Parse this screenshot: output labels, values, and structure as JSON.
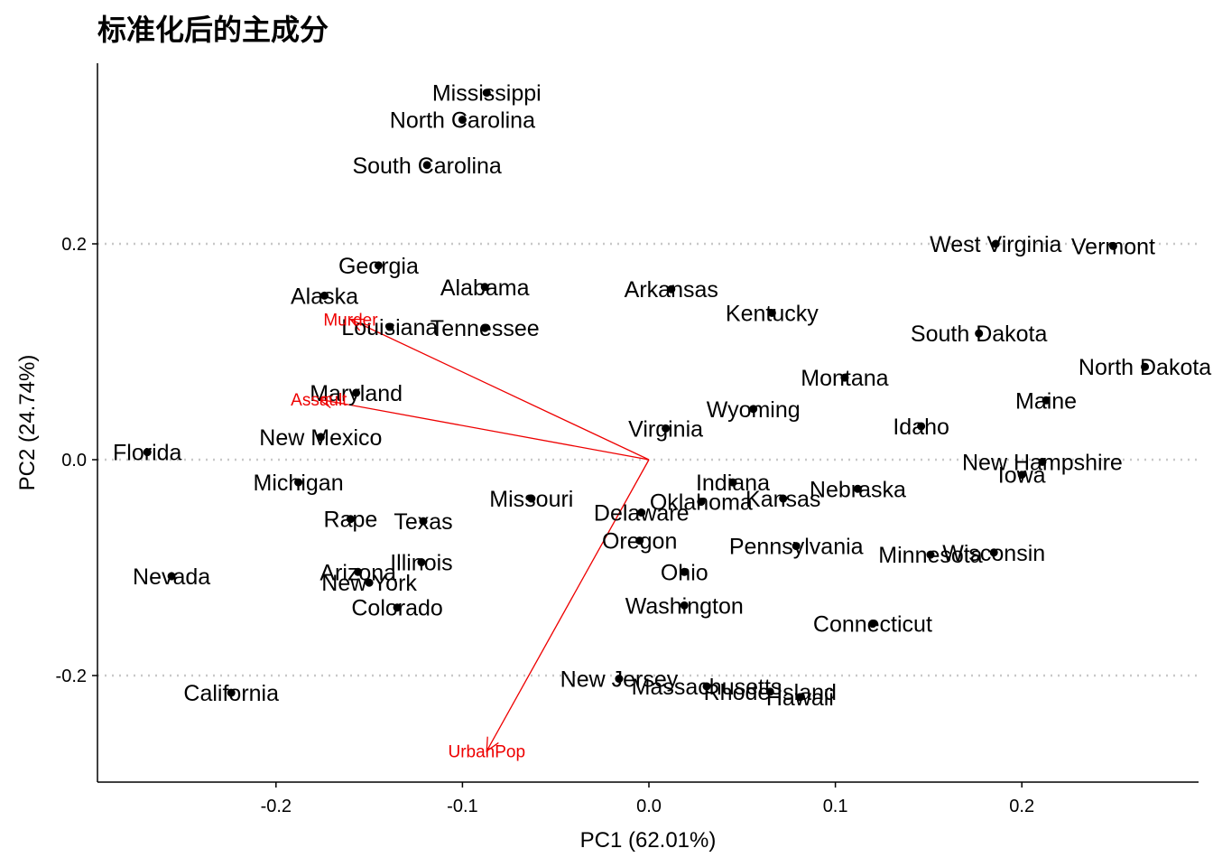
{
  "chart_data": {
    "type": "scatter",
    "title": "标准化后的主成分",
    "xlabel": "PC1 (62.01%)",
    "ylabel": "PC2 (24.74%)",
    "xlim": [
      -0.295,
      0.29
    ],
    "ylim": [
      -0.3,
      0.37
    ],
    "x_ticks": [
      -0.2,
      -0.1,
      0.0,
      0.1,
      0.2
    ],
    "x_tick_labels": [
      "-0.2",
      "-0.1",
      "0.0",
      "0.1",
      "0.2"
    ],
    "y_ticks": [
      -0.2,
      0.0,
      0.2
    ],
    "y_tick_labels": [
      "-0.2",
      "0.0",
      "0.2"
    ],
    "horizontal_gridlines": "dotted, at y ticks",
    "point_color": "#000000",
    "loading_color": "#ee0000",
    "points": [
      {
        "name": "Mississippi",
        "x": -0.087,
        "y": 0.34
      },
      {
        "name": "North Carolina",
        "x": -0.1,
        "y": 0.315
      },
      {
        "name": "South Carolina",
        "x": -0.119,
        "y": 0.273
      },
      {
        "name": "Georgia",
        "x": -0.145,
        "y": 0.18
      },
      {
        "name": "Alaska",
        "x": -0.174,
        "y": 0.152
      },
      {
        "name": "Alabama",
        "x": -0.088,
        "y": 0.16
      },
      {
        "name": "Louisiana",
        "x": -0.139,
        "y": 0.123
      },
      {
        "name": "Tennessee",
        "x": -0.088,
        "y": 0.122
      },
      {
        "name": "Arkansas",
        "x": 0.012,
        "y": 0.158
      },
      {
        "name": "Kentucky",
        "x": 0.066,
        "y": 0.136
      },
      {
        "name": "West Virginia",
        "x": 0.186,
        "y": 0.2
      },
      {
        "name": "Vermont",
        "x": 0.249,
        "y": 0.198
      },
      {
        "name": "South Dakota",
        "x": 0.177,
        "y": 0.117
      },
      {
        "name": "North Dakota",
        "x": 0.266,
        "y": 0.086
      },
      {
        "name": "Montana",
        "x": 0.105,
        "y": 0.076
      },
      {
        "name": "Maine",
        "x": 0.213,
        "y": 0.055
      },
      {
        "name": "Maryland",
        "x": -0.157,
        "y": 0.062
      },
      {
        "name": "Wyoming",
        "x": 0.056,
        "y": 0.047
      },
      {
        "name": "Idaho",
        "x": 0.146,
        "y": 0.031
      },
      {
        "name": "Virginia",
        "x": 0.009,
        "y": 0.029
      },
      {
        "name": "New Mexico",
        "x": -0.176,
        "y": 0.021
      },
      {
        "name": "Florida",
        "x": -0.269,
        "y": 0.007
      },
      {
        "name": "New Hampshire",
        "x": 0.211,
        "y": -0.002
      },
      {
        "name": "Iowa",
        "x": 0.2,
        "y": -0.014
      },
      {
        "name": "Michigan",
        "x": -0.188,
        "y": -0.021
      },
      {
        "name": "Indiana",
        "x": 0.045,
        "y": -0.021
      },
      {
        "name": "Nebraska",
        "x": 0.112,
        "y": -0.027
      },
      {
        "name": "Missouri",
        "x": -0.063,
        "y": -0.036
      },
      {
        "name": "Kansas",
        "x": 0.072,
        "y": -0.036
      },
      {
        "name": "Oklahoma",
        "x": 0.028,
        "y": -0.039
      },
      {
        "name": "Delaware",
        "x": -0.004,
        "y": -0.049
      },
      {
        "name": "Rape",
        "x": -0.16,
        "y": -0.055
      },
      {
        "name": "Texas",
        "x": -0.121,
        "y": -0.057
      },
      {
        "name": "Oregon",
        "x": -0.005,
        "y": -0.075
      },
      {
        "name": "Pennsylvania",
        "x": 0.079,
        "y": -0.08
      },
      {
        "name": "Minnesota",
        "x": 0.151,
        "y": -0.088
      },
      {
        "name": "Wisconsin",
        "x": 0.185,
        "y": -0.086
      },
      {
        "name": "Illinois",
        "x": -0.122,
        "y": -0.095
      },
      {
        "name": "Arizona",
        "x": -0.156,
        "y": -0.104
      },
      {
        "name": "Ohio",
        "x": 0.019,
        "y": -0.104
      },
      {
        "name": "New York",
        "x": -0.15,
        "y": -0.114
      },
      {
        "name": "Nevada",
        "x": -0.256,
        "y": -0.108
      },
      {
        "name": "Washington",
        "x": 0.019,
        "y": -0.135
      },
      {
        "name": "Colorado",
        "x": -0.135,
        "y": -0.137
      },
      {
        "name": "Connecticut",
        "x": 0.12,
        "y": -0.152
      },
      {
        "name": "New Jersey",
        "x": -0.016,
        "y": -0.203
      },
      {
        "name": "Massachusetts",
        "x": 0.031,
        "y": -0.21
      },
      {
        "name": "Rhode Island",
        "x": 0.065,
        "y": -0.215
      },
      {
        "name": "Hawaii",
        "x": 0.081,
        "y": -0.22
      },
      {
        "name": "California",
        "x": -0.224,
        "y": -0.216
      }
    ],
    "loadings": [
      {
        "name": "Murder",
        "x": -0.16,
        "y": 0.13
      },
      {
        "name": "Assault",
        "x": -0.177,
        "y": 0.056
      },
      {
        "name": "UrbanPop",
        "x": -0.087,
        "y": -0.27
      }
    ],
    "loading_origin": [
      0,
      0
    ]
  }
}
